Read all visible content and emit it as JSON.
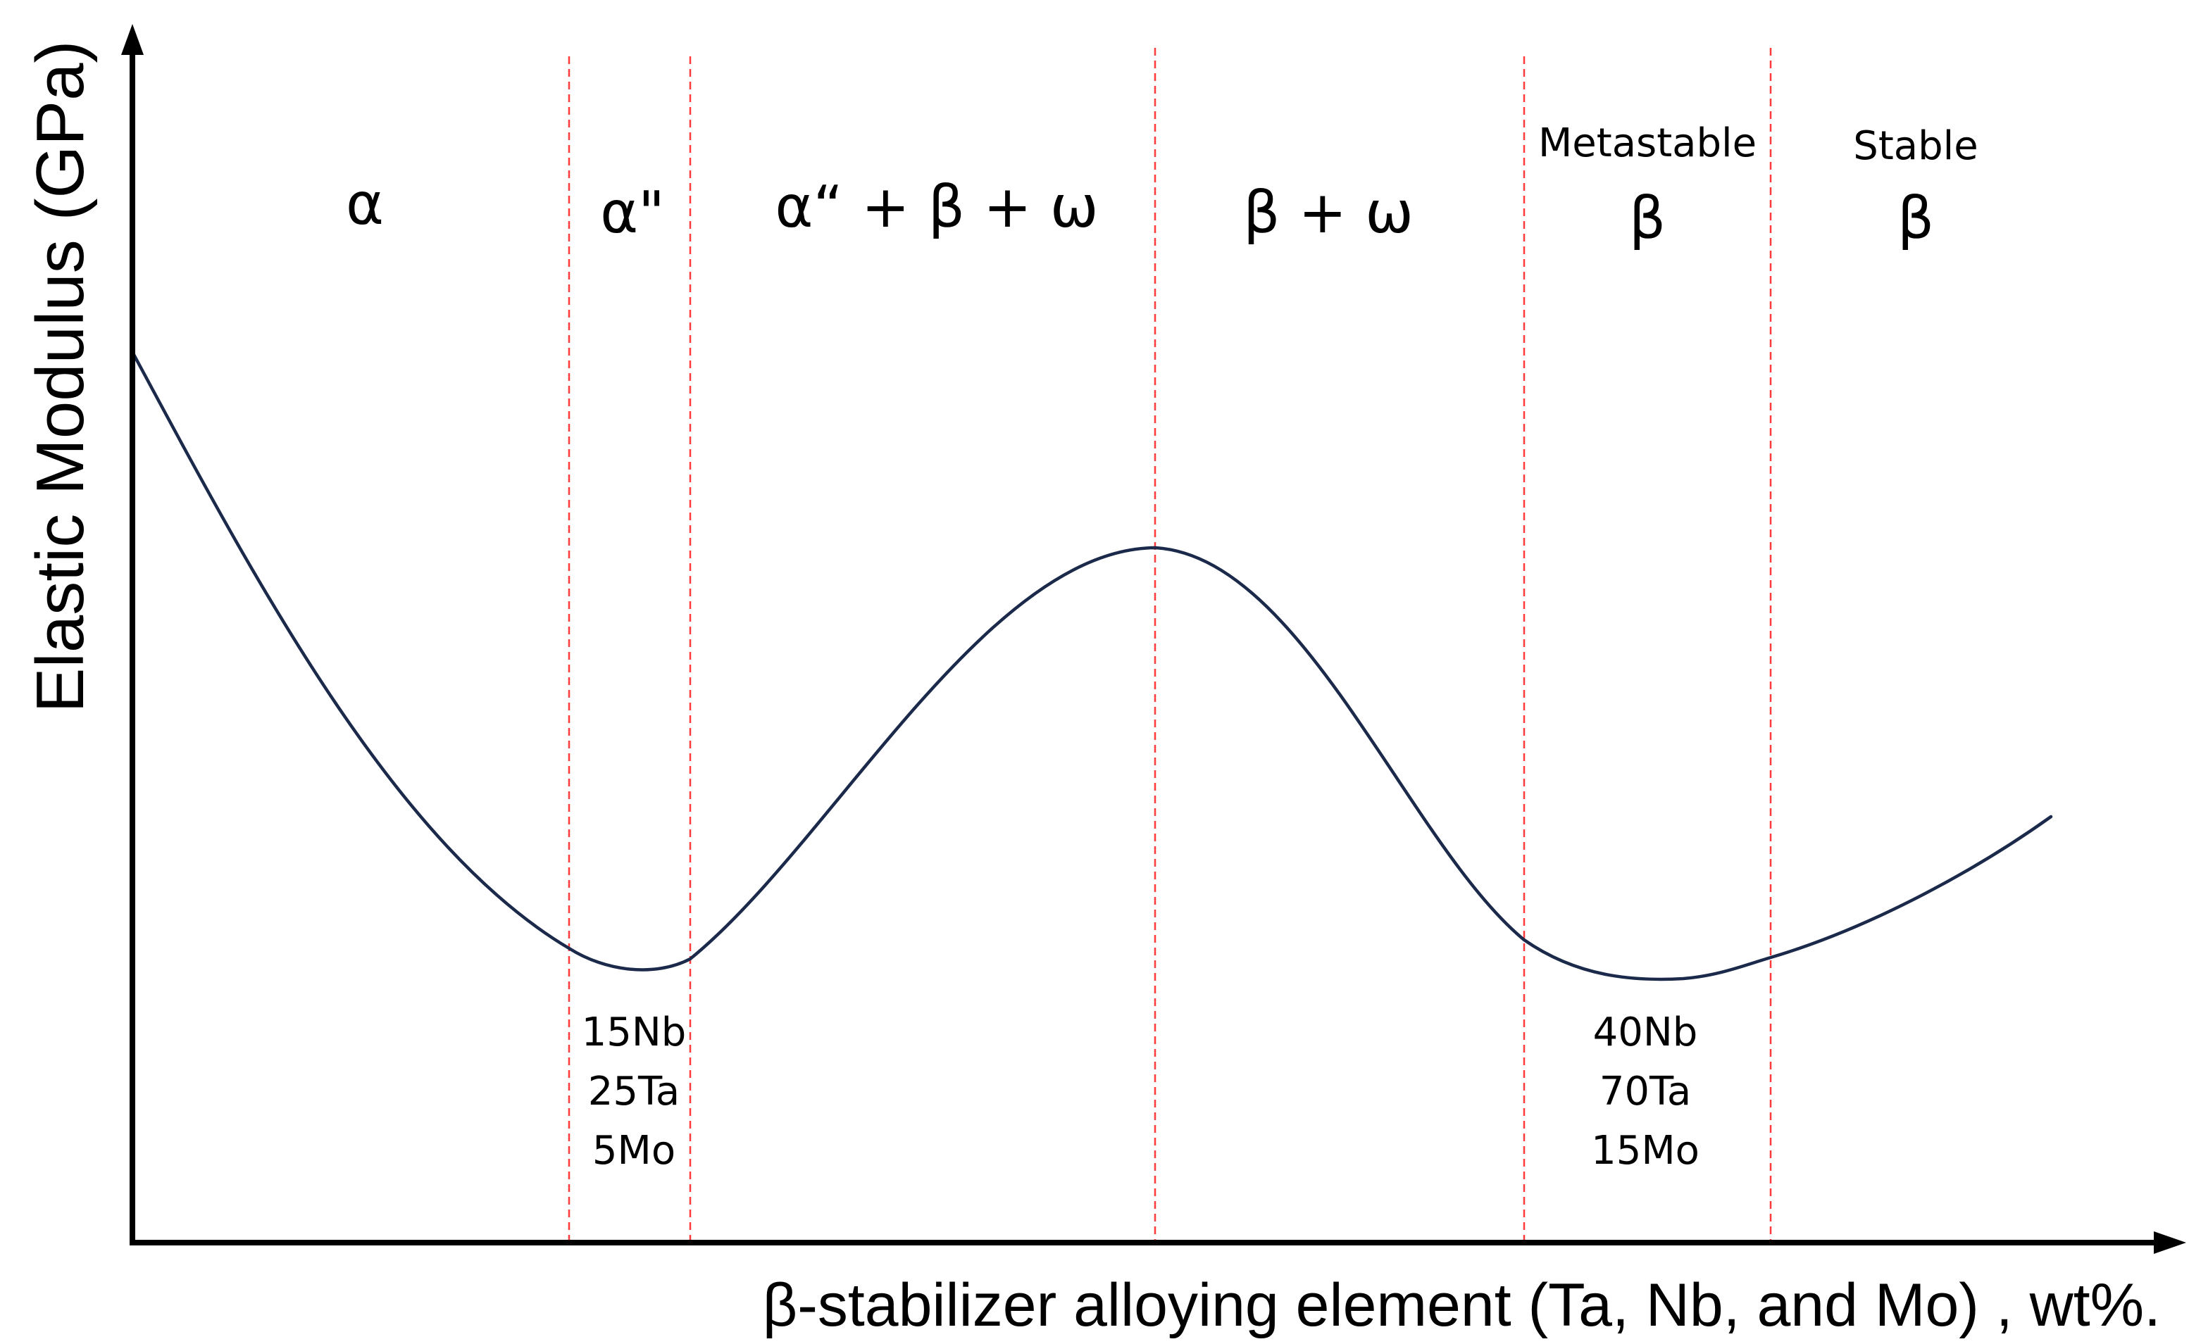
{
  "axes": {
    "y_label": "Elastic Modulus (GPa)",
    "x_label": "β-stabilizer alloying element  (Ta, Nb, and Mo) , wt%."
  },
  "regions": [
    {
      "caption": "",
      "phase": "α"
    },
    {
      "caption": "",
      "phase": "α\""
    },
    {
      "caption": "",
      "phase": "α“ + β + ω"
    },
    {
      "caption": "",
      "phase": "β + ω"
    },
    {
      "caption": "Metastable",
      "phase": "β"
    },
    {
      "caption": "Stable",
      "phase": "β"
    }
  ],
  "compositions": {
    "first_minimum": [
      "15Nb",
      "25Ta",
      "5Mo"
    ],
    "second_minimum": [
      "40Nb",
      "70Ta",
      "15Mo"
    ]
  },
  "colors": {
    "axis": "#000000",
    "curve": "#1b2a4a",
    "divider": "#ff3b3b"
  }
}
